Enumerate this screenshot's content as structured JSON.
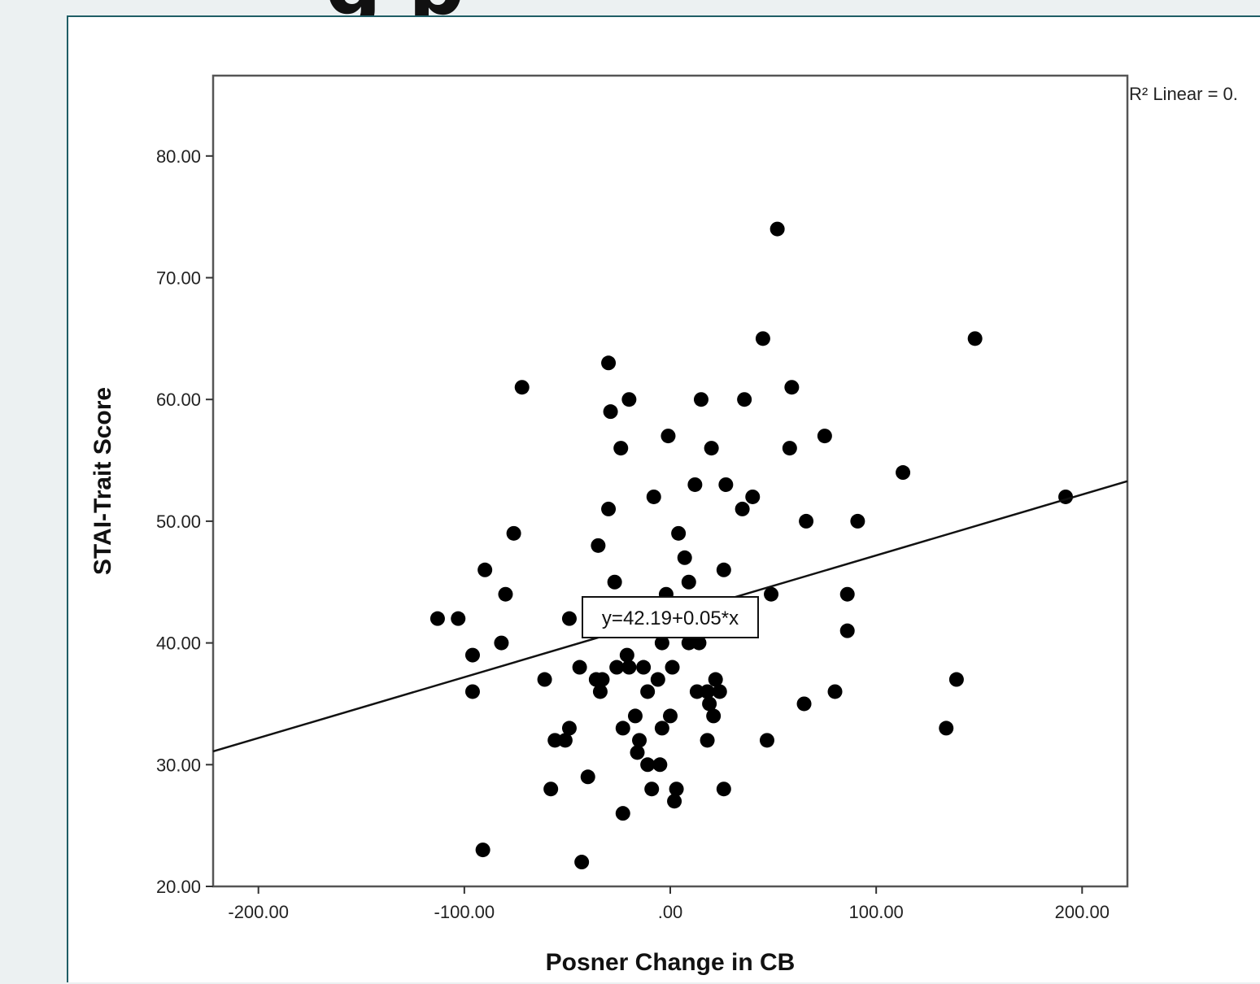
{
  "header": {
    "title_fragment": "g p"
  },
  "chart_data": {
    "type": "scatter",
    "xlabel": "Posner Change in CB",
    "ylabel": "STAI-Trait Score",
    "xlim": [
      -222,
      222
    ],
    "ylim": [
      20,
      86.6
    ],
    "x_ticks": [
      -200,
      -100,
      0,
      100,
      200
    ],
    "x_tick_labels": [
      "-200.00",
      "-100.00",
      ".00",
      "100.00",
      "200.00"
    ],
    "y_ticks": [
      20,
      30,
      40,
      50,
      60,
      70,
      80
    ],
    "y_tick_labels": [
      "20.00",
      "30.00",
      "40.00",
      "50.00",
      "60.00",
      "70.00",
      "80.00"
    ],
    "fit_line": {
      "intercept": 42.19,
      "slope": 0.05,
      "equation_label": "y=42.19+0.05*x"
    },
    "r2_label": "R² Linear = 0.",
    "grid": false,
    "points": [
      {
        "x": -113,
        "y": 42
      },
      {
        "x": -103,
        "y": 42
      },
      {
        "x": -96,
        "y": 39
      },
      {
        "x": -96,
        "y": 36
      },
      {
        "x": -91,
        "y": 23
      },
      {
        "x": -90,
        "y": 46
      },
      {
        "x": -82,
        "y": 40
      },
      {
        "x": -80,
        "y": 44
      },
      {
        "x": -76,
        "y": 49
      },
      {
        "x": -72,
        "y": 61
      },
      {
        "x": -61,
        "y": 37
      },
      {
        "x": -58,
        "y": 28
      },
      {
        "x": -56,
        "y": 32
      },
      {
        "x": -51,
        "y": 32
      },
      {
        "x": -49,
        "y": 33
      },
      {
        "x": -49,
        "y": 42
      },
      {
        "x": -44,
        "y": 38
      },
      {
        "x": -43,
        "y": 22
      },
      {
        "x": -40,
        "y": 29
      },
      {
        "x": -36,
        "y": 37
      },
      {
        "x": -35,
        "y": 48
      },
      {
        "x": -34,
        "y": 36
      },
      {
        "x": -33,
        "y": 37
      },
      {
        "x": -30,
        "y": 63
      },
      {
        "x": -30,
        "y": 51
      },
      {
        "x": -29,
        "y": 59
      },
      {
        "x": -27,
        "y": 45
      },
      {
        "x": -26,
        "y": 38
      },
      {
        "x": -24,
        "y": 56
      },
      {
        "x": -23,
        "y": 33
      },
      {
        "x": -23,
        "y": 26
      },
      {
        "x": -21,
        "y": 39
      },
      {
        "x": -20,
        "y": 60
      },
      {
        "x": -20,
        "y": 38
      },
      {
        "x": -17,
        "y": 34
      },
      {
        "x": -16,
        "y": 31
      },
      {
        "x": -15,
        "y": 32
      },
      {
        "x": -13,
        "y": 38
      },
      {
        "x": -11,
        "y": 30
      },
      {
        "x": -11,
        "y": 36
      },
      {
        "x": -9,
        "y": 28
      },
      {
        "x": -8,
        "y": 52
      },
      {
        "x": -6,
        "y": 37
      },
      {
        "x": -5,
        "y": 30
      },
      {
        "x": -4,
        "y": 33
      },
      {
        "x": -4,
        "y": 40
      },
      {
        "x": -2,
        "y": 44
      },
      {
        "x": -1,
        "y": 57
      },
      {
        "x": 0,
        "y": 34
      },
      {
        "x": 1,
        "y": 38
      },
      {
        "x": 2,
        "y": 27
      },
      {
        "x": 3,
        "y": 28
      },
      {
        "x": 4,
        "y": 49
      },
      {
        "x": 7,
        "y": 47
      },
      {
        "x": 9,
        "y": 45
      },
      {
        "x": 9,
        "y": 40
      },
      {
        "x": 12,
        "y": 53
      },
      {
        "x": 13,
        "y": 36
      },
      {
        "x": 14,
        "y": 40
      },
      {
        "x": 15,
        "y": 60
      },
      {
        "x": 18,
        "y": 36
      },
      {
        "x": 18,
        "y": 32
      },
      {
        "x": 19,
        "y": 35
      },
      {
        "x": 20,
        "y": 56
      },
      {
        "x": 21,
        "y": 34
      },
      {
        "x": 22,
        "y": 37
      },
      {
        "x": 24,
        "y": 36
      },
      {
        "x": 26,
        "y": 28
      },
      {
        "x": 26,
        "y": 46
      },
      {
        "x": 27,
        "y": 53
      },
      {
        "x": 35,
        "y": 51
      },
      {
        "x": 36,
        "y": 60
      },
      {
        "x": 40,
        "y": 52
      },
      {
        "x": 45,
        "y": 65
      },
      {
        "x": 47,
        "y": 32
      },
      {
        "x": 49,
        "y": 44
      },
      {
        "x": 52,
        "y": 74
      },
      {
        "x": 58,
        "y": 56
      },
      {
        "x": 59,
        "y": 61
      },
      {
        "x": 65,
        "y": 35
      },
      {
        "x": 66,
        "y": 50
      },
      {
        "x": 75,
        "y": 57
      },
      {
        "x": 80,
        "y": 36
      },
      {
        "x": 86,
        "y": 44
      },
      {
        "x": 86,
        "y": 41
      },
      {
        "x": 91,
        "y": 50
      },
      {
        "x": 113,
        "y": 54
      },
      {
        "x": 134,
        "y": 33
      },
      {
        "x": 139,
        "y": 37
      },
      {
        "x": 148,
        "y": 65
      },
      {
        "x": 192,
        "y": 52
      }
    ]
  }
}
